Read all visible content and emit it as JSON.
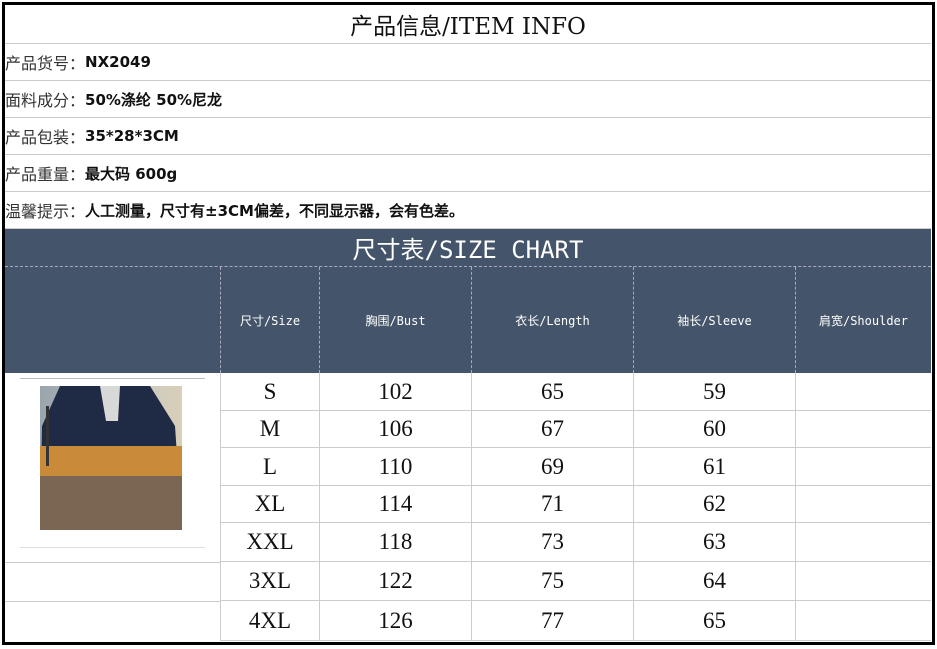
{
  "info": {
    "title": "产品信息/ITEM INFO",
    "rows": [
      {
        "label": "产品货号：",
        "value": "NX2049"
      },
      {
        "label": "面料成分：",
        "value": "50%涤纶 50%尼龙"
      },
      {
        "label": "产品包装：",
        "value": "35*28*3CM"
      },
      {
        "label": "产品重量：",
        "value": "最大码 600g"
      },
      {
        "label": "温馨提示：",
        "value": "人工测量，尺寸有±3CM偏差，不同显示器，会有色差。"
      }
    ]
  },
  "size_chart": {
    "title": "尺寸表/SIZE CHART",
    "headers": [
      "尺寸/Size",
      "胸围/Bust",
      "衣长/Length",
      "袖长/Sleeve",
      "肩宽/Shoulder"
    ],
    "rows": [
      [
        "S",
        "102",
        "65",
        "59",
        ""
      ],
      [
        "M",
        "106",
        "67",
        "60",
        ""
      ],
      [
        "L",
        "110",
        "69",
        "61",
        ""
      ],
      [
        "XL",
        "114",
        "71",
        "62",
        ""
      ],
      [
        "XXL",
        "118",
        "73",
        "63",
        ""
      ],
      [
        "3XL",
        "122",
        "75",
        "64",
        ""
      ],
      [
        "4XL",
        "126",
        "77",
        "65",
        ""
      ]
    ]
  },
  "colors": {
    "header_bg": "#44546a"
  },
  "image": "product-photo-sweater"
}
